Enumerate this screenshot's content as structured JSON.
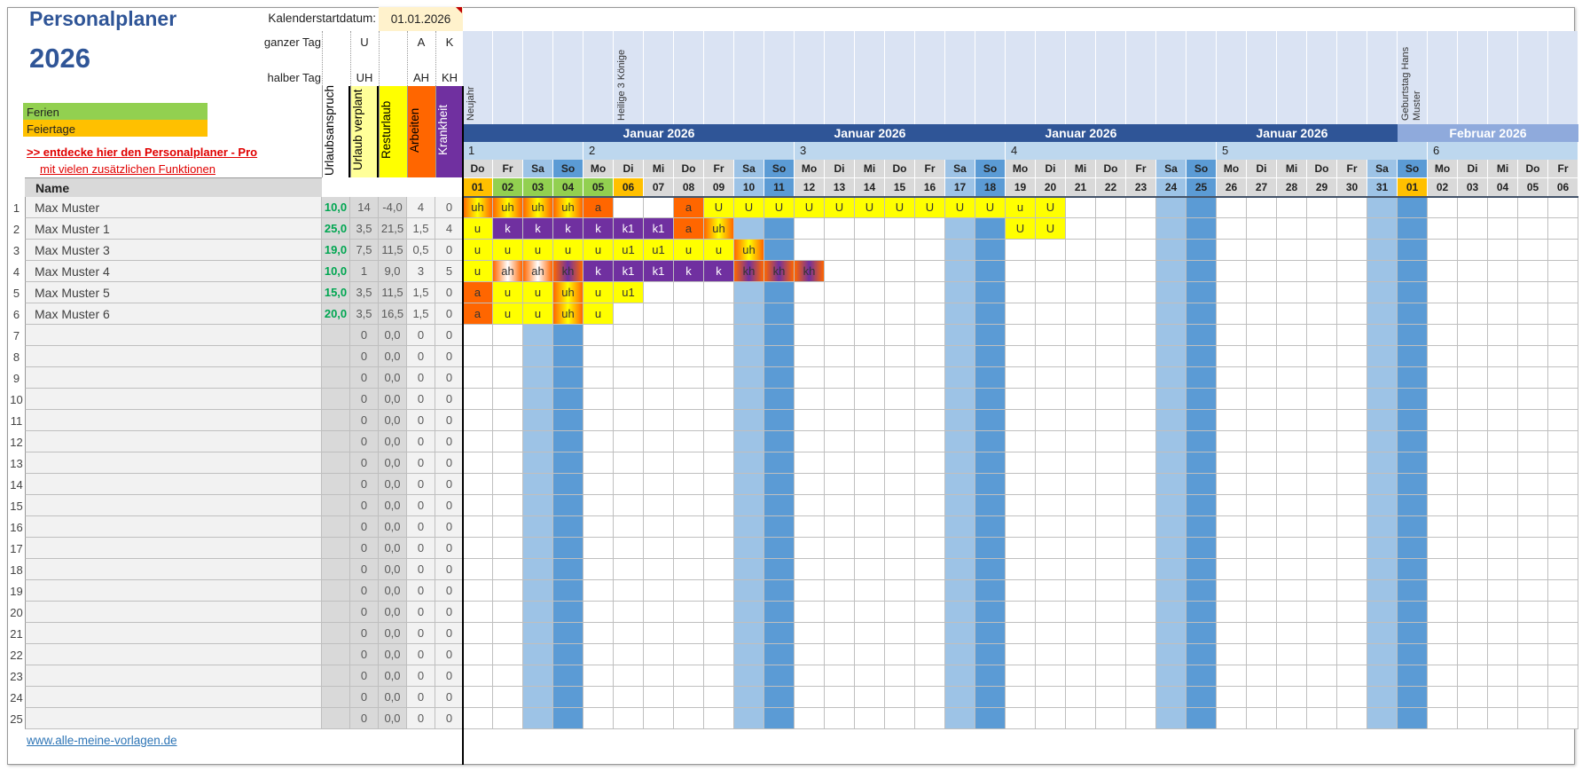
{
  "title": "Personalplaner",
  "year": "2026",
  "start_label": "Kalenderstartdatum:",
  "start_value": "01.01.2026",
  "legend": {
    "full_day": "ganzer Tag",
    "half_day": "halber Tag",
    "codes": [
      {
        "full": "U",
        "half": "UH"
      },
      {
        "full": "A",
        "half": "AH"
      },
      {
        "full": "K",
        "half": "KH"
      }
    ]
  },
  "columns": [
    "Urlaubsanspruch",
    "Urlaub verplant",
    "Resturlaub",
    "Arbeiten",
    "Krankheit"
  ],
  "column_colors": [
    "#ffffff",
    "#ffff99",
    "#ffff00",
    "#ff6600",
    "#7030a0"
  ],
  "color_legend": [
    {
      "label": "Ferien",
      "color": "#92d050"
    },
    {
      "label": "Feiertage",
      "color": "#ffc000"
    }
  ],
  "promo": {
    "line1": ">> entdecke hier den Personalplaner - Pro",
    "line2": "mit vielen zusätzlichen Funktionen"
  },
  "name_header": "Name",
  "colors": {
    "month": "#2f5597",
    "month_next": "#8faadc",
    "week": "#bdd7ee",
    "event_bg": "#dae3f3",
    "sa": "#9dc3e6",
    "so": "#5b9bd5",
    "ferien": "#92d050",
    "feiertag": "#ffc000",
    "u": "#ffff00",
    "a": "#ff6600",
    "k": "#7030a0"
  },
  "month_labels": [
    {
      "label": "Januar 2026",
      "month": "jan"
    },
    {
      "label": "Januar 2026",
      "month": "jan"
    },
    {
      "label": "Januar 2026",
      "month": "jan"
    },
    {
      "label": "Januar 2026",
      "month": "jan"
    },
    {
      "label": "Februar 2026",
      "month": "feb"
    }
  ],
  "weeks": [
    {
      "label": "1",
      "days": 4
    },
    {
      "label": "2",
      "days": 7
    },
    {
      "label": "3",
      "days": 7
    },
    {
      "label": "4",
      "days": 7
    },
    {
      "label": "5",
      "days": 7
    },
    {
      "label": "6",
      "days": 5
    }
  ],
  "days": [
    {
      "wd": "Do",
      "d": "01",
      "type": "feiertag",
      "event": "Neujahr"
    },
    {
      "wd": "Fr",
      "d": "02",
      "type": "ferien"
    },
    {
      "wd": "Sa",
      "d": "03",
      "type": "ferien"
    },
    {
      "wd": "So",
      "d": "04",
      "type": "ferien"
    },
    {
      "wd": "Mo",
      "d": "05",
      "type": "ferien"
    },
    {
      "wd": "Di",
      "d": "06",
      "type": "feiertag",
      "event": "Heilige 3 Könige"
    },
    {
      "wd": "Mi",
      "d": "07"
    },
    {
      "wd": "Do",
      "d": "08"
    },
    {
      "wd": "Fr",
      "d": "09"
    },
    {
      "wd": "Sa",
      "d": "10"
    },
    {
      "wd": "So",
      "d": "11"
    },
    {
      "wd": "Mo",
      "d": "12"
    },
    {
      "wd": "Di",
      "d": "13"
    },
    {
      "wd": "Mi",
      "d": "14"
    },
    {
      "wd": "Do",
      "d": "15"
    },
    {
      "wd": "Fr",
      "d": "16"
    },
    {
      "wd": "Sa",
      "d": "17"
    },
    {
      "wd": "So",
      "d": "18"
    },
    {
      "wd": "Mo",
      "d": "19"
    },
    {
      "wd": "Di",
      "d": "20"
    },
    {
      "wd": "Mi",
      "d": "21"
    },
    {
      "wd": "Do",
      "d": "22"
    },
    {
      "wd": "Fr",
      "d": "23"
    },
    {
      "wd": "Sa",
      "d": "24"
    },
    {
      "wd": "So",
      "d": "25"
    },
    {
      "wd": "Mo",
      "d": "26"
    },
    {
      "wd": "Di",
      "d": "27"
    },
    {
      "wd": "Mi",
      "d": "28"
    },
    {
      "wd": "Do",
      "d": "29"
    },
    {
      "wd": "Fr",
      "d": "30"
    },
    {
      "wd": "Sa",
      "d": "31"
    },
    {
      "wd": "So",
      "d": "01",
      "type": "feiertag",
      "event": "Geburtstag Hans Muster"
    },
    {
      "wd": "Mo",
      "d": "02"
    },
    {
      "wd": "Di",
      "d": "03"
    },
    {
      "wd": "Mi",
      "d": "04"
    },
    {
      "wd": "Do",
      "d": "05"
    },
    {
      "wd": "Fr",
      "d": "06"
    }
  ],
  "rows": [
    {
      "num": "1",
      "name": "Max Muster",
      "anspruch": "10,0",
      "verplant": "14",
      "rest": "-4,0",
      "arbeiten": "4",
      "krank": "0",
      "entries": [
        "uh",
        "uh",
        "uh",
        "uh",
        "a",
        "",
        "",
        "a",
        "U",
        "U",
        "U",
        "U",
        "U",
        "U",
        "U",
        "U",
        "U",
        "U",
        "u",
        "U"
      ]
    },
    {
      "num": "2",
      "name": "Max Muster 1",
      "anspruch": "25,0",
      "verplant": "3,5",
      "rest": "21,5",
      "arbeiten": "1,5",
      "krank": "4",
      "entries": [
        "u",
        "k",
        "k",
        "k",
        "k",
        "k1",
        "k1",
        "a",
        "uh",
        "",
        "",
        "",
        "",
        "",
        "",
        "",
        "",
        "",
        "U",
        "U"
      ]
    },
    {
      "num": "3",
      "name": "Max Muster 3",
      "anspruch": "19,0",
      "verplant": "7,5",
      "rest": "11,5",
      "arbeiten": "0,5",
      "krank": "0",
      "entries": [
        "u",
        "u",
        "u",
        "u",
        "u",
        "u1",
        "u1",
        "u",
        "u",
        "uh"
      ]
    },
    {
      "num": "4",
      "name": "Max Muster 4",
      "anspruch": "10,0",
      "verplant": "1",
      "rest": "9,0",
      "arbeiten": "3",
      "krank": "5",
      "entries": [
        "u",
        "ah",
        "ah",
        "kh",
        "k",
        "k1",
        "k1",
        "k",
        "k",
        "kh",
        "kh",
        "kh"
      ]
    },
    {
      "num": "5",
      "name": "Max Muster 5",
      "anspruch": "15,0",
      "verplant": "3,5",
      "rest": "11,5",
      "arbeiten": "1,5",
      "krank": "0",
      "entries": [
        "a",
        "u",
        "u",
        "uh",
        "u",
        "u1"
      ]
    },
    {
      "num": "6",
      "name": "Max Muster 6",
      "anspruch": "20,0",
      "verplant": "3,5",
      "rest": "16,5",
      "arbeiten": "1,5",
      "krank": "0",
      "entries": [
        "a",
        "u",
        "u",
        "uh",
        "u"
      ]
    },
    {
      "num": "7",
      "name": "",
      "anspruch": "",
      "verplant": "0",
      "rest": "0,0",
      "arbeiten": "0",
      "krank": "0",
      "entries": []
    },
    {
      "num": "8",
      "name": "",
      "anspruch": "",
      "verplant": "0",
      "rest": "0,0",
      "arbeiten": "0",
      "krank": "0",
      "entries": []
    },
    {
      "num": "9",
      "name": "",
      "anspruch": "",
      "verplant": "0",
      "rest": "0,0",
      "arbeiten": "0",
      "krank": "0",
      "entries": []
    },
    {
      "num": "10",
      "name": "",
      "anspruch": "",
      "verplant": "0",
      "rest": "0,0",
      "arbeiten": "0",
      "krank": "0",
      "entries": []
    },
    {
      "num": "11",
      "name": "",
      "anspruch": "",
      "verplant": "0",
      "rest": "0,0",
      "arbeiten": "0",
      "krank": "0",
      "entries": []
    },
    {
      "num": "12",
      "name": "",
      "anspruch": "",
      "verplant": "0",
      "rest": "0,0",
      "arbeiten": "0",
      "krank": "0",
      "entries": []
    },
    {
      "num": "13",
      "name": "",
      "anspruch": "",
      "verplant": "0",
      "rest": "0,0",
      "arbeiten": "0",
      "krank": "0",
      "entries": []
    },
    {
      "num": "14",
      "name": "",
      "anspruch": "",
      "verplant": "0",
      "rest": "0,0",
      "arbeiten": "0",
      "krank": "0",
      "entries": []
    },
    {
      "num": "15",
      "name": "",
      "anspruch": "",
      "verplant": "0",
      "rest": "0,0",
      "arbeiten": "0",
      "krank": "0",
      "entries": []
    },
    {
      "num": "16",
      "name": "",
      "anspruch": "",
      "verplant": "0",
      "rest": "0,0",
      "arbeiten": "0",
      "krank": "0",
      "entries": []
    },
    {
      "num": "17",
      "name": "",
      "anspruch": "",
      "verplant": "0",
      "rest": "0,0",
      "arbeiten": "0",
      "krank": "0",
      "entries": []
    },
    {
      "num": "18",
      "name": "",
      "anspruch": "",
      "verplant": "0",
      "rest": "0,0",
      "arbeiten": "0",
      "krank": "0",
      "entries": []
    },
    {
      "num": "19",
      "name": "",
      "anspruch": "",
      "verplant": "0",
      "rest": "0,0",
      "arbeiten": "0",
      "krank": "0",
      "entries": []
    },
    {
      "num": "20",
      "name": "",
      "anspruch": "",
      "verplant": "0",
      "rest": "0,0",
      "arbeiten": "0",
      "krank": "0",
      "entries": []
    },
    {
      "num": "21",
      "name": "",
      "anspruch": "",
      "verplant": "0",
      "rest": "0,0",
      "arbeiten": "0",
      "krank": "0",
      "entries": []
    },
    {
      "num": "22",
      "name": "",
      "anspruch": "",
      "verplant": "0",
      "rest": "0,0",
      "arbeiten": "0",
      "krank": "0",
      "entries": []
    },
    {
      "num": "23",
      "name": "",
      "anspruch": "",
      "verplant": "0",
      "rest": "0,0",
      "arbeiten": "0",
      "krank": "0",
      "entries": []
    },
    {
      "num": "24",
      "name": "",
      "anspruch": "",
      "verplant": "0",
      "rest": "0,0",
      "arbeiten": "0",
      "krank": "0",
      "entries": []
    },
    {
      "num": "25",
      "name": "",
      "anspruch": "",
      "verplant": "0",
      "rest": "0,0",
      "arbeiten": "0",
      "krank": "0",
      "entries": []
    }
  ],
  "footer_link": "www.alle-meine-vorlagen.de"
}
